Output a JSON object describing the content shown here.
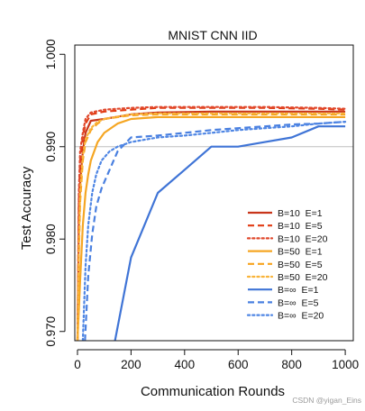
{
  "watermark": "CSDN @yigan_Eins",
  "chart_data": {
    "type": "line",
    "title": "MNIST CNN IID",
    "xlabel": "Communication Rounds",
    "ylabel": "Test Accuracy",
    "xlim": [
      -10,
      1030
    ],
    "ylim": [
      0.969,
      1.001
    ],
    "xticks": [
      0,
      200,
      400,
      600,
      800,
      1000
    ],
    "xtick_labels": [
      "0",
      "200",
      "400",
      "600",
      "800",
      "1000"
    ],
    "yticks": [
      0.97,
      0.98,
      0.99,
      1.0
    ],
    "ytick_labels": [
      "0.970",
      "0.980",
      "0.990",
      "1.000"
    ],
    "reference_line": {
      "y": 0.99,
      "color": "#bfbfbf"
    },
    "legend_position": "center-right",
    "series": [
      {
        "name": "B=10  E=1",
        "color": "#c8351a",
        "dash": "solid",
        "x": [
          0,
          5,
          10,
          20,
          30,
          50,
          100,
          200,
          300,
          500,
          700,
          900,
          1000
        ],
        "y": [
          0.969,
          0.9815,
          0.986,
          0.9895,
          0.9915,
          0.9928,
          0.993,
          0.9935,
          0.9937,
          0.9938,
          0.9938,
          0.9938,
          0.9938
        ]
      },
      {
        "name": "B=10  E=5",
        "color": "#e23c14",
        "dash": "dashed",
        "x": [
          0,
          5,
          10,
          20,
          30,
          50,
          100,
          200,
          300,
          500,
          700,
          900,
          1000
        ],
        "y": [
          0.969,
          0.984,
          0.9885,
          0.991,
          0.9925,
          0.9935,
          0.9938,
          0.994,
          0.9942,
          0.9942,
          0.9942,
          0.9941,
          0.994
        ]
      },
      {
        "name": "B=10  E=20",
        "color": "#e0482c",
        "dash": "dotted",
        "x": [
          0,
          5,
          10,
          20,
          30,
          50,
          100,
          200,
          300,
          500,
          700,
          900,
          1000
        ],
        "y": [
          0.969,
          0.985,
          0.9895,
          0.9915,
          0.993,
          0.9937,
          0.994,
          0.9942,
          0.9943,
          0.9943,
          0.9943,
          0.9942,
          0.9941
        ]
      },
      {
        "name": "B=50  E=1",
        "color": "#f5a623",
        "dash": "solid",
        "x": [
          0,
          10,
          20,
          30,
          40,
          50,
          75,
          100,
          150,
          200,
          300,
          500,
          800,
          1000
        ],
        "y": [
          0.969,
          0.9755,
          0.9815,
          0.985,
          0.987,
          0.9885,
          0.9905,
          0.9915,
          0.9925,
          0.993,
          0.9932,
          0.9932,
          0.9932,
          0.9932
        ]
      },
      {
        "name": "B=50  E=5",
        "color": "#f7a21c",
        "dash": "dashed",
        "x": [
          0,
          5,
          10,
          20,
          30,
          50,
          75,
          100,
          200,
          300,
          500,
          800,
          1000
        ],
        "y": [
          0.969,
          0.978,
          0.984,
          0.9885,
          0.9905,
          0.9918,
          0.9925,
          0.993,
          0.9934,
          0.9935,
          0.9935,
          0.9935,
          0.9935
        ]
      },
      {
        "name": "B=50  E=20",
        "color": "#f9b43a",
        "dash": "dotted",
        "x": [
          0,
          5,
          10,
          20,
          30,
          50,
          75,
          100,
          200,
          300,
          500,
          800,
          1000
        ],
        "y": [
          0.969,
          0.979,
          0.985,
          0.989,
          0.9908,
          0.992,
          0.9927,
          0.993,
          0.9935,
          0.9936,
          0.9936,
          0.9936,
          0.9936
        ]
      },
      {
        "name": "B=∞  E=1",
        "color": "#3f74d6",
        "dash": "solid",
        "x": [
          140,
          200,
          300,
          400,
          500,
          600,
          700,
          800,
          900,
          1000
        ],
        "y": [
          0.969,
          0.978,
          0.985,
          0.9875,
          0.99,
          0.99,
          0.9905,
          0.991,
          0.9922,
          0.9922
        ]
      },
      {
        "name": "B=∞  E=5",
        "color": "#4a80e0",
        "dash": "dashed",
        "x": [
          28,
          40,
          55,
          70,
          90,
          120,
          150,
          200,
          300,
          400,
          500,
          600,
          700,
          800,
          900,
          1000
        ],
        "y": [
          0.969,
          0.976,
          0.9805,
          0.9835,
          0.9855,
          0.9875,
          0.9895,
          0.991,
          0.9912,
          0.9915,
          0.9918,
          0.992,
          0.9922,
          0.9924,
          0.9925,
          0.9927
        ]
      },
      {
        "name": "B=∞  E=20",
        "color": "#4f86e4",
        "dash": "dotted",
        "x": [
          20,
          30,
          40,
          55,
          70,
          90,
          120,
          150,
          200,
          300,
          400,
          500,
          600,
          700,
          800,
          900,
          1000
        ],
        "y": [
          0.969,
          0.977,
          0.9815,
          0.985,
          0.987,
          0.9885,
          0.9895,
          0.99,
          0.9905,
          0.991,
          0.9912,
          0.9915,
          0.9918,
          0.992,
          0.9922,
          0.9925,
          0.9927
        ]
      }
    ]
  }
}
